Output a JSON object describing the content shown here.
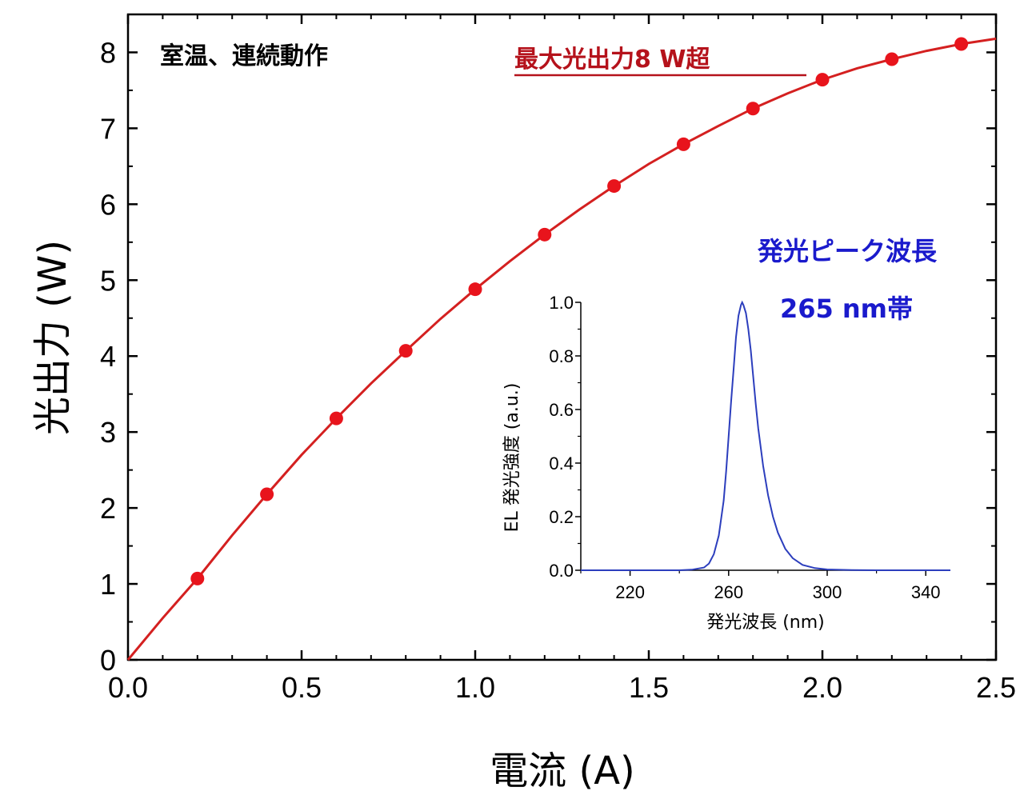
{
  "colors": {
    "main_series": "#e8141c",
    "main_series_line": "#d42020",
    "max_note": "#b5121b",
    "inset_series": "#2c3ebd",
    "peak_note": "#1a1acc",
    "axis": "#000000"
  },
  "chart_data": [
    {
      "type": "line",
      "title": "",
      "xlabel": "電流 (A)",
      "ylabel": "光出力 (W)",
      "xlim": [
        0,
        2.5
      ],
      "ylim": [
        0,
        8.4
      ],
      "xticks": [
        0.0,
        0.5,
        1.0,
        1.5,
        2.0,
        2.5
      ],
      "xtick_labels": [
        "0.0",
        "0.5",
        "1.0",
        "1.5",
        "2.0",
        "2.5"
      ],
      "yticks": [
        0,
        1,
        2,
        3,
        4,
        5,
        6,
        7,
        8
      ],
      "ytick_labels": [
        "0",
        "1",
        "2",
        "3",
        "4",
        "5",
        "6",
        "7",
        "8"
      ],
      "grid": false,
      "series": [
        {
          "name": "光出力",
          "markers": true,
          "x": [
            0.2,
            0.4,
            0.6,
            0.8,
            1.0,
            1.2,
            1.4,
            1.6,
            1.8,
            2.0,
            2.2,
            2.4
          ],
          "y": [
            1.07,
            2.18,
            3.18,
            4.07,
            4.88,
            5.6,
            6.24,
            6.79,
            7.26,
            7.64,
            7.91,
            8.11
          ]
        }
      ],
      "fit_curve": {
        "x": [
          0,
          0.1,
          0.2,
          0.3,
          0.4,
          0.5,
          0.6,
          0.7,
          0.8,
          0.9,
          1.0,
          1.1,
          1.2,
          1.3,
          1.4,
          1.5,
          1.6,
          1.7,
          1.8,
          1.9,
          2.0,
          2.1,
          2.2,
          2.3,
          2.4,
          2.5
        ],
        "y": [
          0,
          0.55,
          1.07,
          1.64,
          2.18,
          2.7,
          3.18,
          3.64,
          4.07,
          4.49,
          4.88,
          5.25,
          5.6,
          5.93,
          6.24,
          6.53,
          6.79,
          7.03,
          7.26,
          7.46,
          7.64,
          7.79,
          7.91,
          8.02,
          8.11,
          8.18
        ]
      },
      "annotations": [
        {
          "text": "室温、連続動作"
        },
        {
          "text": "最大光出力8 W超"
        }
      ]
    },
    {
      "type": "line",
      "title": "",
      "xlabel": "発光波長 (nm)",
      "ylabel": "EL 発光強度 (a.u.)",
      "xlim": [
        200,
        350
      ],
      "ylim": [
        0,
        1.0
      ],
      "xticks": [
        220,
        260,
        300,
        340
      ],
      "xtick_labels": [
        "220",
        "260",
        "300",
        "340"
      ],
      "yticks": [
        0.0,
        0.2,
        0.4,
        0.6,
        0.8,
        1.0
      ],
      "ytick_labels": [
        "0.0",
        "0.2",
        "0.4",
        "0.6",
        "0.8",
        "1.0"
      ],
      "grid": false,
      "series": [
        {
          "name": "EL spectrum",
          "peak_x": 265.5,
          "x": [
            200,
            240,
            245,
            250,
            252,
            254,
            256,
            258,
            259,
            260,
            261,
            262,
            263,
            264,
            265,
            265.5,
            266,
            267,
            268,
            269,
            270,
            271,
            272,
            274,
            276,
            278,
            280,
            283,
            286,
            290,
            295,
            300,
            310,
            320,
            350
          ],
          "y": [
            0,
            0,
            0.002,
            0.01,
            0.025,
            0.06,
            0.13,
            0.26,
            0.37,
            0.5,
            0.63,
            0.75,
            0.87,
            0.95,
            0.99,
            1.0,
            0.99,
            0.96,
            0.9,
            0.82,
            0.72,
            0.62,
            0.53,
            0.39,
            0.28,
            0.2,
            0.14,
            0.08,
            0.045,
            0.02,
            0.008,
            0.003,
            0.001,
            0,
            0
          ]
        }
      ],
      "annotations": [
        {
          "text": "発光ピーク波長"
        },
        {
          "text": "265 nm帯"
        }
      ]
    }
  ]
}
